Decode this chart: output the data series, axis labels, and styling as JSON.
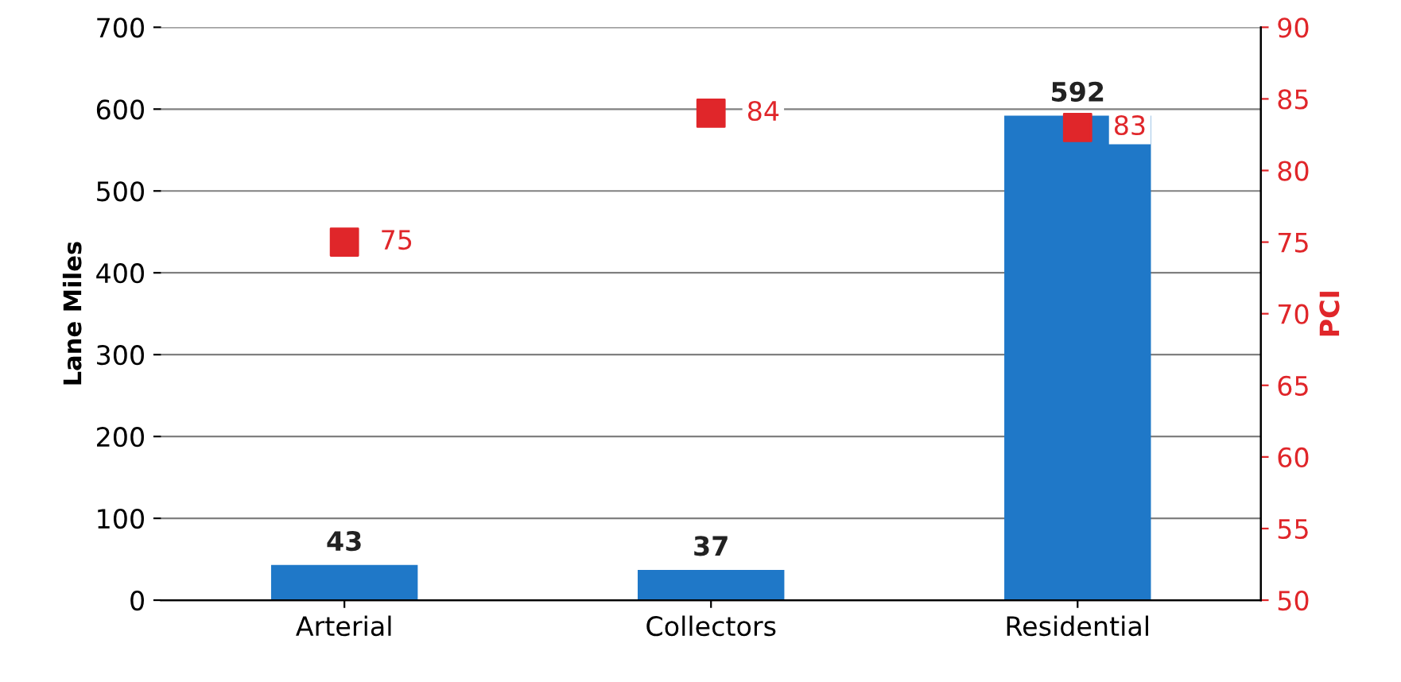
{
  "chart_data": {
    "type": "bar",
    "categories": [
      "Arterial",
      "Collectors",
      "Residential"
    ],
    "ylabel": "Lane Miles",
    "y2label": "PCI",
    "ylim": [
      0,
      700
    ],
    "yticks": [
      0,
      100,
      200,
      300,
      400,
      500,
      600,
      700
    ],
    "y2lim": [
      50,
      90
    ],
    "y2ticks": [
      50,
      55,
      60,
      65,
      70,
      75,
      80,
      85,
      90
    ],
    "grid": "y",
    "data_labels": true,
    "marker": "square",
    "series": [
      {
        "color": "#1f78c8",
        "values": [
          43,
          37,
          592
        ]
      },
      {
        "type": "scatter",
        "axis": "y2",
        "color": "#e0262a",
        "values": [
          75,
          84,
          83
        ]
      }
    ]
  }
}
